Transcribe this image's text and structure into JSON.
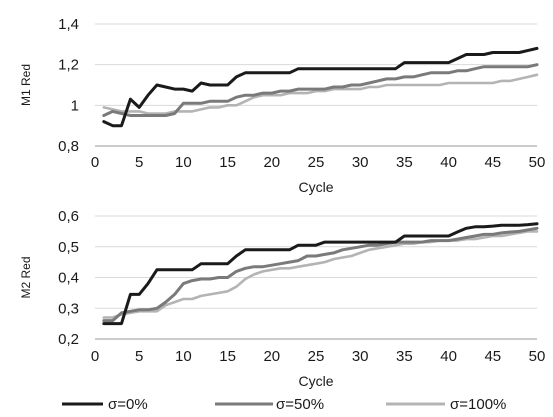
{
  "colors": {
    "sigma0": "#1a1a1a",
    "sigma50": "#7a7a7a",
    "sigma100": "#b4b4b4",
    "grid": "#d9d9d9",
    "axis": "#9a9a9a"
  },
  "legend": {
    "placement": "bottom",
    "items": [
      "σ=0%",
      "σ=50%",
      "σ=100%"
    ]
  },
  "chart_data": [
    {
      "type": "line",
      "title": "",
      "xlabel": "Cycle",
      "ylabel": "M1 Red",
      "xlim": [
        0,
        50
      ],
      "ylim": [
        0.8,
        1.4
      ],
      "xticks": [
        0,
        5,
        10,
        15,
        20,
        25,
        30,
        35,
        40,
        45,
        50
      ],
      "yticks": [
        0.8,
        1,
        1.2,
        1.4
      ],
      "ytick_labels": [
        "0,8",
        "1",
        "1,2",
        "1,4"
      ],
      "grid": "horizontal",
      "series": [
        {
          "name": "σ=0%",
          "x": [
            1,
            2,
            3,
            4,
            5,
            6,
            7,
            8,
            9,
            10,
            11,
            12,
            13,
            14,
            15,
            16,
            17,
            18,
            19,
            20,
            21,
            22,
            23,
            24,
            25,
            26,
            27,
            28,
            29,
            30,
            31,
            32,
            33,
            34,
            35,
            36,
            37,
            38,
            39,
            40,
            41,
            42,
            43,
            44,
            45,
            46,
            47,
            48,
            49,
            50
          ],
          "y": [
            0.92,
            0.9,
            0.9,
            1.03,
            0.99,
            1.05,
            1.1,
            1.09,
            1.08,
            1.08,
            1.07,
            1.11,
            1.1,
            1.1,
            1.1,
            1.14,
            1.16,
            1.16,
            1.16,
            1.16,
            1.16,
            1.16,
            1.18,
            1.18,
            1.18,
            1.18,
            1.18,
            1.18,
            1.18,
            1.18,
            1.18,
            1.18,
            1.18,
            1.18,
            1.21,
            1.21,
            1.21,
            1.21,
            1.21,
            1.21,
            1.23,
            1.25,
            1.25,
            1.25,
            1.26,
            1.26,
            1.26,
            1.26,
            1.27,
            1.28
          ]
        },
        {
          "name": "σ=50%",
          "x": [
            1,
            2,
            3,
            4,
            5,
            6,
            7,
            8,
            9,
            10,
            11,
            12,
            13,
            14,
            15,
            16,
            17,
            18,
            19,
            20,
            21,
            22,
            23,
            24,
            25,
            26,
            27,
            28,
            29,
            30,
            31,
            32,
            33,
            34,
            35,
            36,
            37,
            38,
            39,
            40,
            41,
            42,
            43,
            44,
            45,
            46,
            47,
            48,
            49,
            50
          ],
          "y": [
            0.95,
            0.97,
            0.96,
            0.95,
            0.95,
            0.95,
            0.95,
            0.95,
            0.96,
            1.01,
            1.01,
            1.01,
            1.02,
            1.02,
            1.02,
            1.04,
            1.05,
            1.05,
            1.06,
            1.06,
            1.07,
            1.07,
            1.08,
            1.08,
            1.08,
            1.08,
            1.09,
            1.09,
            1.1,
            1.1,
            1.11,
            1.12,
            1.13,
            1.13,
            1.14,
            1.14,
            1.15,
            1.16,
            1.16,
            1.16,
            1.17,
            1.17,
            1.18,
            1.19,
            1.19,
            1.19,
            1.19,
            1.19,
            1.19,
            1.2
          ]
        },
        {
          "name": "σ=100%",
          "x": [
            1,
            2,
            3,
            4,
            5,
            6,
            7,
            8,
            9,
            10,
            11,
            12,
            13,
            14,
            15,
            16,
            17,
            18,
            19,
            20,
            21,
            22,
            23,
            24,
            25,
            26,
            27,
            28,
            29,
            30,
            31,
            32,
            33,
            34,
            35,
            36,
            37,
            38,
            39,
            40,
            41,
            42,
            43,
            44,
            45,
            46,
            47,
            48,
            49,
            50
          ],
          "y": [
            0.99,
            0.98,
            0.97,
            0.97,
            0.97,
            0.96,
            0.96,
            0.96,
            0.97,
            0.97,
            0.97,
            0.98,
            0.99,
            0.99,
            1.0,
            1.0,
            1.02,
            1.04,
            1.05,
            1.05,
            1.05,
            1.06,
            1.06,
            1.06,
            1.07,
            1.07,
            1.08,
            1.08,
            1.08,
            1.08,
            1.09,
            1.09,
            1.1,
            1.1,
            1.1,
            1.1,
            1.1,
            1.1,
            1.1,
            1.11,
            1.11,
            1.11,
            1.11,
            1.11,
            1.11,
            1.12,
            1.12,
            1.13,
            1.14,
            1.15
          ]
        }
      ]
    },
    {
      "type": "line",
      "title": "",
      "xlabel": "Cycle",
      "ylabel": "M2 Red",
      "xlim": [
        0,
        50
      ],
      "ylim": [
        0.2,
        0.6
      ],
      "xticks": [
        0,
        5,
        10,
        15,
        20,
        25,
        30,
        35,
        40,
        45,
        50
      ],
      "yticks": [
        0.2,
        0.3,
        0.4,
        0.5,
        0.6
      ],
      "ytick_labels": [
        "0,2",
        "0,3",
        "0,4",
        "0,5",
        "0,6"
      ],
      "grid": "horizontal",
      "series": [
        {
          "name": "σ=0%",
          "x": [
            1,
            2,
            3,
            4,
            5,
            6,
            7,
            8,
            9,
            10,
            11,
            12,
            13,
            14,
            15,
            16,
            17,
            18,
            19,
            20,
            21,
            22,
            23,
            24,
            25,
            26,
            27,
            28,
            29,
            30,
            31,
            32,
            33,
            34,
            35,
            36,
            37,
            38,
            39,
            40,
            41,
            42,
            43,
            44,
            45,
            46,
            47,
            48,
            49,
            50
          ],
          "y": [
            0.25,
            0.25,
            0.25,
            0.345,
            0.345,
            0.38,
            0.425,
            0.425,
            0.425,
            0.425,
            0.425,
            0.445,
            0.445,
            0.445,
            0.445,
            0.47,
            0.49,
            0.49,
            0.49,
            0.49,
            0.49,
            0.49,
            0.505,
            0.505,
            0.505,
            0.515,
            0.515,
            0.515,
            0.515,
            0.515,
            0.515,
            0.515,
            0.515,
            0.515,
            0.535,
            0.535,
            0.535,
            0.535,
            0.535,
            0.535,
            0.548,
            0.56,
            0.565,
            0.565,
            0.567,
            0.57,
            0.57,
            0.57,
            0.572,
            0.575
          ]
        },
        {
          "name": "σ=50%",
          "x": [
            1,
            2,
            3,
            4,
            5,
            6,
            7,
            8,
            9,
            10,
            11,
            12,
            13,
            14,
            15,
            16,
            17,
            18,
            19,
            20,
            21,
            22,
            23,
            24,
            25,
            26,
            27,
            28,
            29,
            30,
            31,
            32,
            33,
            34,
            35,
            36,
            37,
            38,
            39,
            40,
            41,
            42,
            43,
            44,
            45,
            46,
            47,
            48,
            49,
            50
          ],
          "y": [
            0.26,
            0.26,
            0.285,
            0.29,
            0.295,
            0.295,
            0.3,
            0.32,
            0.345,
            0.38,
            0.39,
            0.395,
            0.395,
            0.4,
            0.4,
            0.42,
            0.43,
            0.435,
            0.435,
            0.44,
            0.445,
            0.45,
            0.455,
            0.47,
            0.47,
            0.475,
            0.48,
            0.49,
            0.495,
            0.5,
            0.505,
            0.505,
            0.51,
            0.515,
            0.515,
            0.515,
            0.515,
            0.52,
            0.52,
            0.52,
            0.525,
            0.53,
            0.535,
            0.54,
            0.54,
            0.545,
            0.548,
            0.55,
            0.555,
            0.56
          ]
        },
        {
          "name": "σ=100%",
          "x": [
            1,
            2,
            3,
            4,
            5,
            6,
            7,
            8,
            9,
            10,
            11,
            12,
            13,
            14,
            15,
            16,
            17,
            18,
            19,
            20,
            21,
            22,
            23,
            24,
            25,
            26,
            27,
            28,
            29,
            30,
            31,
            32,
            33,
            34,
            35,
            36,
            37,
            38,
            39,
            40,
            41,
            42,
            43,
            44,
            45,
            46,
            47,
            48,
            49,
            50
          ],
          "y": [
            0.27,
            0.27,
            0.28,
            0.285,
            0.29,
            0.29,
            0.29,
            0.31,
            0.32,
            0.33,
            0.33,
            0.34,
            0.345,
            0.35,
            0.355,
            0.37,
            0.395,
            0.41,
            0.42,
            0.425,
            0.43,
            0.43,
            0.435,
            0.44,
            0.445,
            0.45,
            0.46,
            0.465,
            0.47,
            0.48,
            0.49,
            0.495,
            0.5,
            0.505,
            0.51,
            0.51,
            0.515,
            0.515,
            0.52,
            0.52,
            0.52,
            0.525,
            0.525,
            0.53,
            0.535,
            0.535,
            0.54,
            0.545,
            0.55,
            0.55
          ]
        }
      ]
    }
  ]
}
